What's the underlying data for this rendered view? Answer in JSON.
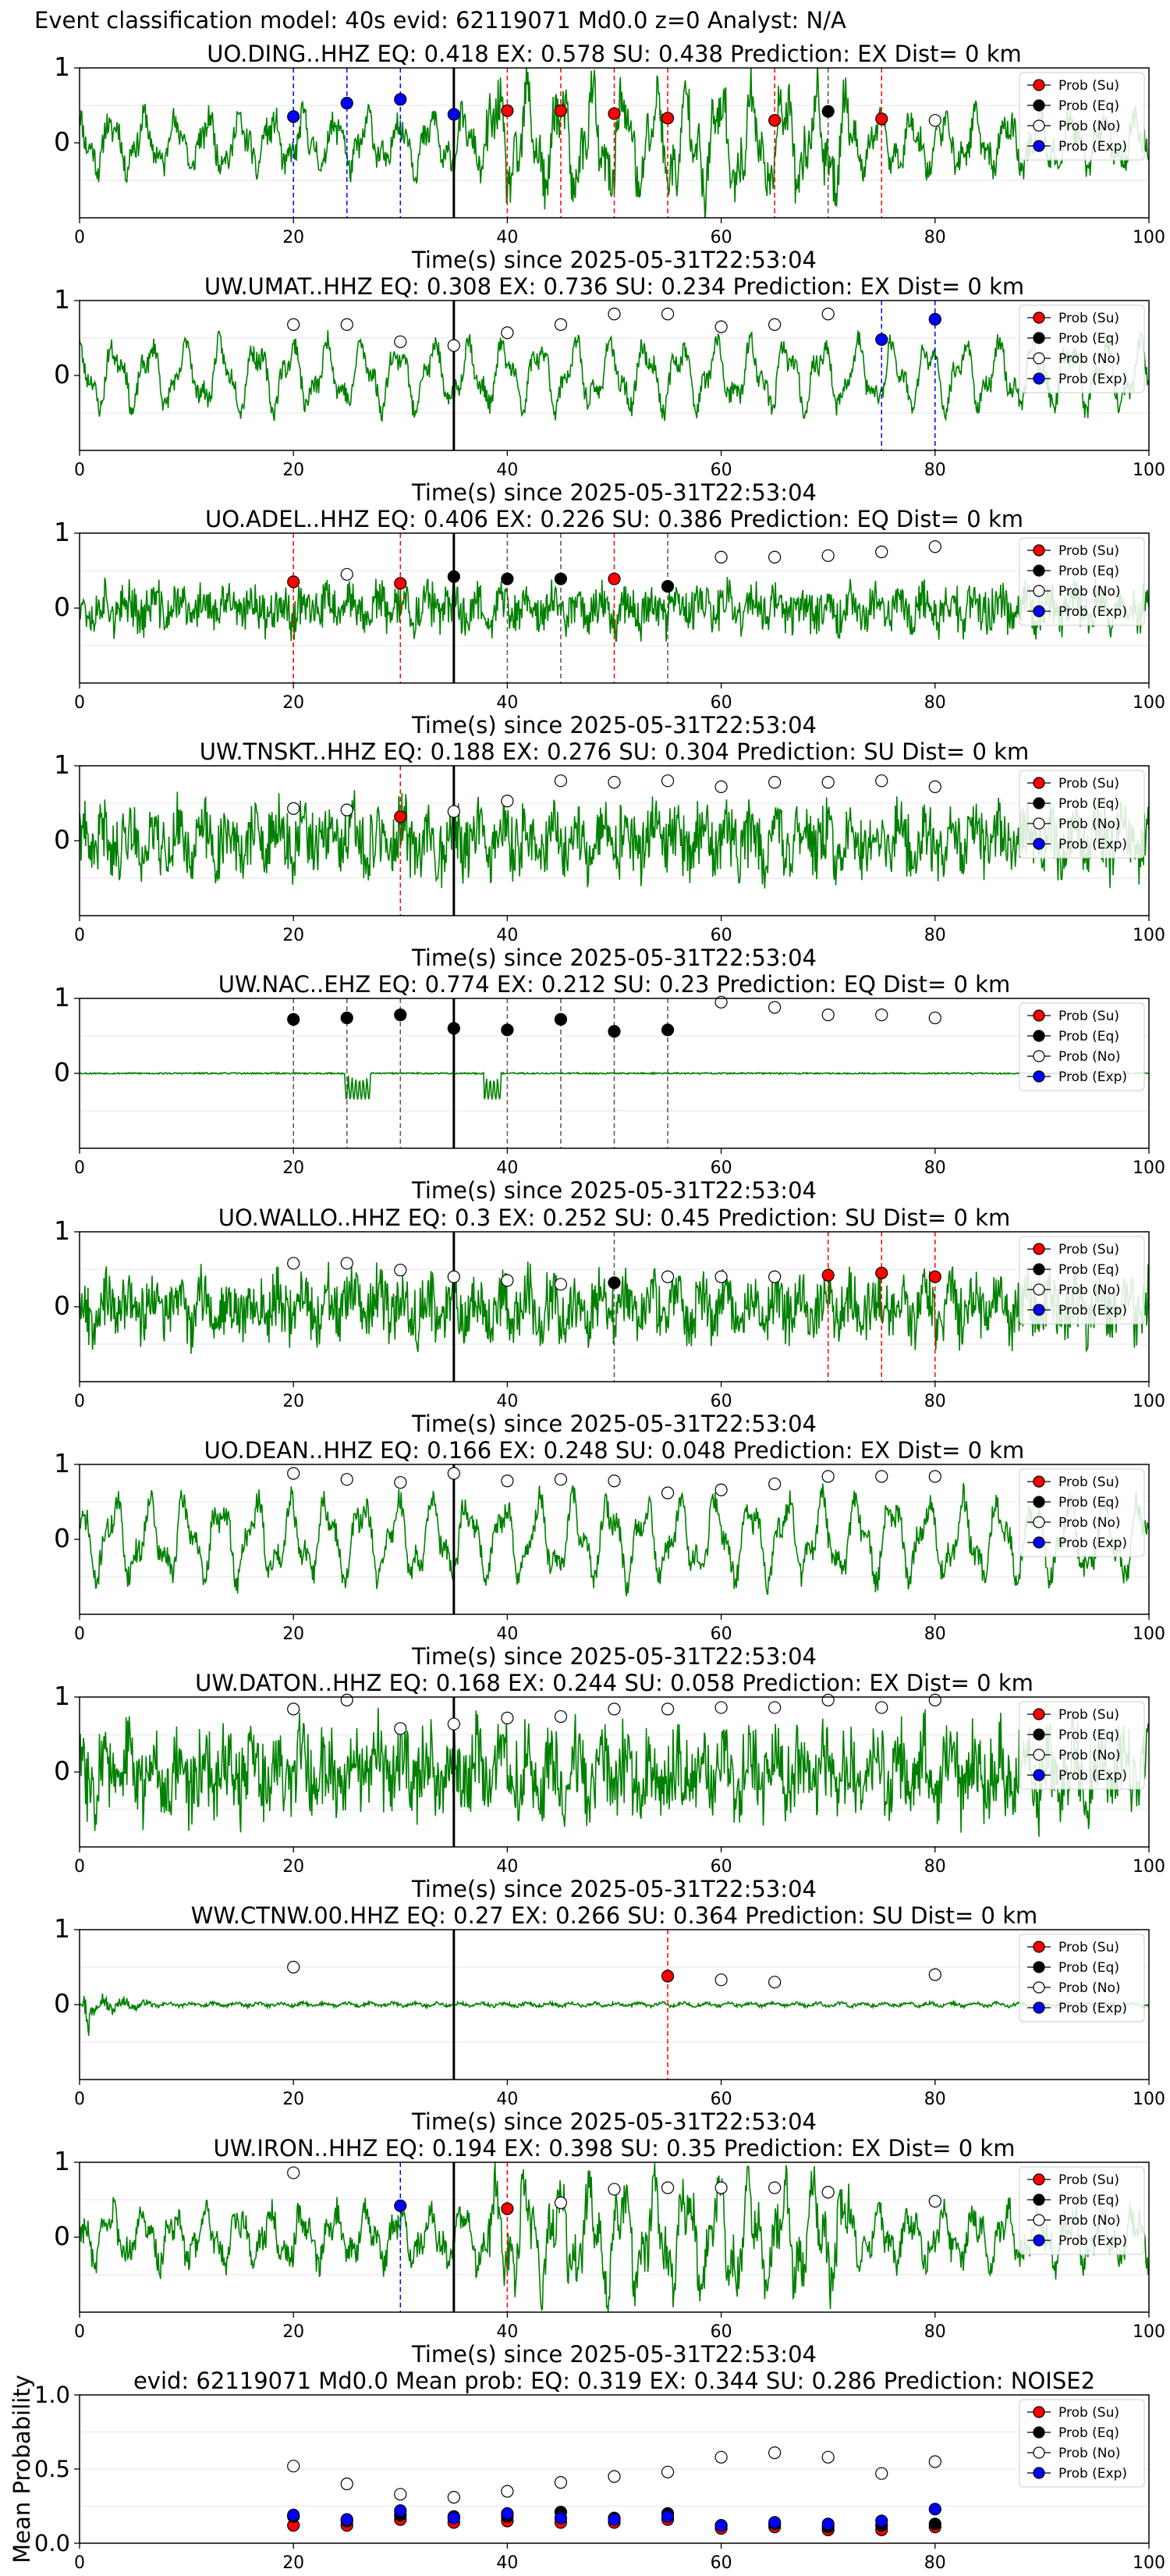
{
  "figure": {
    "suptitle": "Event classification model: 40s evid: 62119071 Md0.0 z=0 Analyst: N/A"
  },
  "legend": {
    "entries": [
      {
        "label": "Prob (Su)",
        "color": "#ff0000"
      },
      {
        "label": "Prob (Eq)",
        "color": "#000000"
      },
      {
        "label": "Prob (No)",
        "color": "#ffffff"
      },
      {
        "label": "Prob (Exp)",
        "color": "#0000ff"
      }
    ]
  },
  "colors": {
    "waveform": "#008000",
    "Su": "#ff0000",
    "Eq": "#000000",
    "No": "#ffffff",
    "Exp": "#0000ff",
    "event_line": "#000000"
  },
  "chart_data": [
    {
      "type": "line",
      "title": "UO.DING..HHZ   EQ: 0.418  EX: 0.578  SU: 0.438   Prediction: EX    Dist= 0 km",
      "xlabel": "Time(s) since 2025-05-31T22:53:04",
      "xlim": [
        0,
        100
      ],
      "ylim": [
        -1,
        1
      ],
      "xticks": [
        0,
        20,
        40,
        60,
        80,
        100
      ],
      "yticks": [
        0,
        1
      ],
      "event_time": 35,
      "waveform": {
        "amplitude": 0.45,
        "character": "mixed",
        "seed": 11
      },
      "points": [
        [
          20,
          0.35,
          "Exp"
        ],
        [
          25,
          0.53,
          "Exp"
        ],
        [
          30,
          0.58,
          "Exp"
        ],
        [
          35,
          0.38,
          "Exp"
        ],
        [
          40,
          0.43,
          "Su"
        ],
        [
          45,
          0.43,
          "Su"
        ],
        [
          50,
          0.39,
          "Su"
        ],
        [
          55,
          0.33,
          "Su"
        ],
        [
          65,
          0.3,
          "Su"
        ],
        [
          70,
          0.42,
          "Eq"
        ],
        [
          75,
          0.32,
          "Su"
        ],
        [
          80,
          0.3,
          "No"
        ]
      ]
    },
    {
      "type": "line",
      "title": "UW.UMAT..HHZ   EQ: 0.308  EX: 0.736  SU: 0.234   Prediction: EX    Dist= 0 km",
      "xlabel": "Time(s) since 2025-05-31T22:53:04",
      "xlim": [
        0,
        100
      ],
      "ylim": [
        -1,
        1
      ],
      "xticks": [
        0,
        20,
        40,
        60,
        80,
        100
      ],
      "yticks": [
        0,
        1
      ],
      "event_time": 35,
      "waveform": {
        "amplitude": 0.45,
        "character": "oscillating",
        "seed": 23
      },
      "points": [
        [
          20,
          0.68,
          "No"
        ],
        [
          25,
          0.68,
          "No"
        ],
        [
          30,
          0.45,
          "No"
        ],
        [
          35,
          0.4,
          "No"
        ],
        [
          40,
          0.57,
          "No"
        ],
        [
          45,
          0.68,
          "No"
        ],
        [
          50,
          0.82,
          "No"
        ],
        [
          55,
          0.82,
          "No"
        ],
        [
          60,
          0.65,
          "No"
        ],
        [
          65,
          0.68,
          "No"
        ],
        [
          70,
          0.82,
          "No"
        ],
        [
          75,
          0.48,
          "Exp"
        ],
        [
          80,
          0.75,
          "Exp"
        ]
      ]
    },
    {
      "type": "line",
      "title": "UO.ADEL..HHZ   EQ: 0.406  EX: 0.226  SU: 0.386   Prediction: EQ    Dist= 0 km",
      "xlabel": "Time(s) since 2025-05-31T22:53:04",
      "xlim": [
        0,
        100
      ],
      "ylim": [
        -1,
        1
      ],
      "xticks": [
        0,
        20,
        40,
        60,
        80,
        100
      ],
      "yticks": [
        0,
        1
      ],
      "event_time": 35,
      "waveform": {
        "amplitude": 0.38,
        "character": "noisy",
        "seed": 37
      },
      "points": [
        [
          20,
          0.35,
          "Su"
        ],
        [
          25,
          0.45,
          "No"
        ],
        [
          30,
          0.33,
          "Su"
        ],
        [
          35,
          0.42,
          "Eq"
        ],
        [
          40,
          0.39,
          "Eq"
        ],
        [
          45,
          0.39,
          "Eq"
        ],
        [
          50,
          0.39,
          "Su"
        ],
        [
          55,
          0.29,
          "Eq"
        ],
        [
          60,
          0.68,
          "No"
        ],
        [
          65,
          0.68,
          "No"
        ],
        [
          70,
          0.7,
          "No"
        ],
        [
          75,
          0.75,
          "No"
        ],
        [
          80,
          0.82,
          "No"
        ]
      ]
    },
    {
      "type": "line",
      "title": "UW.TNSKT..HHZ   EQ: 0.188  EX: 0.276  SU: 0.304   Prediction: SU    Dist= 0 km",
      "xlabel": "Time(s) since 2025-05-31T22:53:04",
      "xlim": [
        0,
        100
      ],
      "ylim": [
        -1,
        1
      ],
      "xticks": [
        0,
        20,
        40,
        60,
        80,
        100
      ],
      "yticks": [
        0,
        1
      ],
      "event_time": 35,
      "waveform": {
        "amplitude": 0.55,
        "character": "noisy",
        "seed": 41
      },
      "points": [
        [
          20,
          0.43,
          "No"
        ],
        [
          25,
          0.41,
          "No"
        ],
        [
          30,
          0.32,
          "Su"
        ],
        [
          35,
          0.39,
          "No"
        ],
        [
          40,
          0.53,
          "No"
        ],
        [
          45,
          0.8,
          "No"
        ],
        [
          50,
          0.78,
          "No"
        ],
        [
          55,
          0.8,
          "No"
        ],
        [
          60,
          0.72,
          "No"
        ],
        [
          65,
          0.78,
          "No"
        ],
        [
          70,
          0.78,
          "No"
        ],
        [
          75,
          0.8,
          "No"
        ],
        [
          80,
          0.72,
          "No"
        ]
      ]
    },
    {
      "type": "line",
      "title": "UW.NAC..EHZ   EQ: 0.774  EX: 0.212  SU: 0.23   Prediction: EQ    Dist= 0 km",
      "xlabel": "Time(s) since 2025-05-31T22:53:04",
      "xlim": [
        0,
        100
      ],
      "ylim": [
        -1,
        1
      ],
      "xticks": [
        0,
        20,
        40,
        60,
        80,
        100
      ],
      "yticks": [
        0,
        1
      ],
      "event_time": 35,
      "waveform": {
        "amplitude": 0.02,
        "character": "flat",
        "seed": 53
      },
      "points": [
        [
          20,
          0.72,
          "Eq"
        ],
        [
          25,
          0.74,
          "Eq"
        ],
        [
          30,
          0.78,
          "Eq"
        ],
        [
          35,
          0.6,
          "Eq"
        ],
        [
          40,
          0.58,
          "Eq"
        ],
        [
          45,
          0.72,
          "Eq"
        ],
        [
          50,
          0.56,
          "Eq"
        ],
        [
          55,
          0.58,
          "Eq"
        ],
        [
          60,
          0.95,
          "No"
        ],
        [
          65,
          0.88,
          "No"
        ],
        [
          70,
          0.78,
          "No"
        ],
        [
          75,
          0.78,
          "No"
        ],
        [
          80,
          0.74,
          "No"
        ]
      ]
    },
    {
      "type": "line",
      "title": "UO.WALLO..HHZ   EQ: 0.3  EX: 0.252  SU: 0.45   Prediction: SU    Dist= 0 km",
      "xlabel": "Time(s) since 2025-05-31T22:53:04",
      "xlim": [
        0,
        100
      ],
      "ylim": [
        -1,
        1
      ],
      "xticks": [
        0,
        20,
        40,
        60,
        80,
        100
      ],
      "yticks": [
        0,
        1
      ],
      "event_time": 35,
      "waveform": {
        "amplitude": 0.5,
        "character": "noisy",
        "seed": 67
      },
      "points": [
        [
          20,
          0.58,
          "No"
        ],
        [
          25,
          0.58,
          "No"
        ],
        [
          30,
          0.49,
          "No"
        ],
        [
          35,
          0.4,
          "No"
        ],
        [
          40,
          0.35,
          "No"
        ],
        [
          45,
          0.3,
          "No"
        ],
        [
          50,
          0.32,
          "Eq"
        ],
        [
          55,
          0.4,
          "No"
        ],
        [
          60,
          0.4,
          "No"
        ],
        [
          65,
          0.4,
          "No"
        ],
        [
          70,
          0.42,
          "Su"
        ],
        [
          75,
          0.45,
          "Su"
        ],
        [
          80,
          0.4,
          "Su"
        ]
      ]
    },
    {
      "type": "line",
      "title": "UO.DEAN..HHZ   EQ: 0.166  EX: 0.248  SU: 0.048   Prediction: EX    Dist= 0 km",
      "xlabel": "Time(s) since 2025-05-31T22:53:04",
      "xlim": [
        0,
        100
      ],
      "ylim": [
        -1,
        1
      ],
      "xticks": [
        0,
        20,
        40,
        60,
        80,
        100
      ],
      "yticks": [
        0,
        1
      ],
      "event_time": 35,
      "waveform": {
        "amplitude": 0.55,
        "character": "oscillating",
        "seed": 71
      },
      "points": [
        [
          20,
          0.88,
          "No"
        ],
        [
          25,
          0.8,
          "No"
        ],
        [
          30,
          0.76,
          "No"
        ],
        [
          35,
          0.88,
          "No"
        ],
        [
          40,
          0.78,
          "No"
        ],
        [
          45,
          0.8,
          "No"
        ],
        [
          50,
          0.78,
          "No"
        ],
        [
          55,
          0.62,
          "No"
        ],
        [
          60,
          0.66,
          "No"
        ],
        [
          65,
          0.74,
          "No"
        ],
        [
          70,
          0.84,
          "No"
        ],
        [
          75,
          0.84,
          "No"
        ],
        [
          80,
          0.84,
          "No"
        ]
      ]
    },
    {
      "type": "line",
      "title": "UW.DATON..HHZ   EQ: 0.168  EX: 0.244  SU: 0.058   Prediction: EX    Dist= 0 km",
      "xlabel": "Time(s) since 2025-05-31T22:53:04",
      "xlim": [
        0,
        100
      ],
      "ylim": [
        -1,
        1
      ],
      "xticks": [
        0,
        20,
        40,
        60,
        80,
        100
      ],
      "yticks": [
        0,
        1
      ],
      "event_time": 35,
      "waveform": {
        "amplitude": 0.7,
        "character": "noisy",
        "seed": 83
      },
      "points": [
        [
          20,
          0.84,
          "No"
        ],
        [
          25,
          0.96,
          "No"
        ],
        [
          30,
          0.58,
          "No"
        ],
        [
          35,
          0.64,
          "No"
        ],
        [
          40,
          0.72,
          "No"
        ],
        [
          45,
          0.74,
          "No"
        ],
        [
          50,
          0.84,
          "No"
        ],
        [
          55,
          0.84,
          "No"
        ],
        [
          60,
          0.86,
          "No"
        ],
        [
          65,
          0.86,
          "No"
        ],
        [
          70,
          0.96,
          "No"
        ],
        [
          75,
          0.86,
          "No"
        ],
        [
          80,
          0.96,
          "No"
        ]
      ]
    },
    {
      "type": "line",
      "title": "WW.CTNW.00.HHZ   EQ: 0.27  EX: 0.266  SU: 0.364   Prediction: SU    Dist= 0 km",
      "xlabel": "Time(s) since 2025-05-31T22:53:04",
      "xlim": [
        0,
        100
      ],
      "ylim": [
        -1,
        1
      ],
      "xticks": [
        0,
        20,
        40,
        60,
        80,
        100
      ],
      "yticks": [
        0,
        1
      ],
      "event_time": 35,
      "waveform": {
        "amplitude": 0.12,
        "character": "decaying",
        "seed": 97
      },
      "points": [
        [
          20,
          0.5,
          "No"
        ],
        [
          55,
          0.38,
          "Su"
        ],
        [
          60,
          0.33,
          "No"
        ],
        [
          65,
          0.3,
          "No"
        ],
        [
          80,
          0.4,
          "No"
        ]
      ]
    },
    {
      "type": "line",
      "title": "UW.IRON..HHZ   EQ: 0.194  EX: 0.398  SU: 0.35   Prediction: EX    Dist= 0 km",
      "xlabel": "Time(s) since 2025-05-31T22:53:04",
      "xlim": [
        0,
        100
      ],
      "ylim": [
        -1,
        1
      ],
      "xticks": [
        0,
        20,
        40,
        60,
        80,
        100
      ],
      "yticks": [
        0,
        1
      ],
      "event_time": 35,
      "waveform": {
        "amplitude": 0.45,
        "character": "mixed",
        "seed": 103
      },
      "points": [
        [
          20,
          0.86,
          "No"
        ],
        [
          30,
          0.42,
          "Exp"
        ],
        [
          40,
          0.38,
          "Su"
        ],
        [
          45,
          0.46,
          "No"
        ],
        [
          50,
          0.64,
          "No"
        ],
        [
          55,
          0.66,
          "No"
        ],
        [
          60,
          0.66,
          "No"
        ],
        [
          65,
          0.66,
          "No"
        ],
        [
          70,
          0.6,
          "No"
        ],
        [
          80,
          0.48,
          "No"
        ]
      ]
    },
    {
      "type": "scatter",
      "title": "evid: 62119071  Md0.0   Mean prob:   EQ: 0.319  EX: 0.344  SU: 0.286   Prediction: NOISE2",
      "xlabel": "",
      "ylabel": "Mean Probability",
      "xlim": [
        0,
        100
      ],
      "ylim": [
        0,
        1
      ],
      "xticks": [
        0,
        20,
        40,
        60,
        80,
        100
      ],
      "yticks": [
        0.0,
        0.5,
        1.0
      ],
      "x": [
        20,
        25,
        30,
        35,
        40,
        45,
        50,
        55,
        60,
        65,
        70,
        75,
        80
      ],
      "series": [
        {
          "name": "Prob (Su)",
          "key": "Su",
          "values": [
            0.12,
            0.12,
            0.16,
            0.14,
            0.15,
            0.14,
            0.14,
            0.16,
            0.1,
            0.11,
            0.09,
            0.09,
            0.11
          ]
        },
        {
          "name": "Prob (Eq)",
          "key": "Eq",
          "values": [
            0.18,
            0.15,
            0.19,
            0.18,
            0.18,
            0.21,
            0.17,
            0.2,
            0.12,
            0.13,
            0.11,
            0.12,
            0.13
          ]
        },
        {
          "name": "Prob (No)",
          "key": "No",
          "values": [
            0.52,
            0.4,
            0.33,
            0.31,
            0.35,
            0.41,
            0.45,
            0.48,
            0.58,
            0.61,
            0.58,
            0.47,
            0.55
          ]
        },
        {
          "name": "Prob (Exp)",
          "key": "Exp",
          "values": [
            0.19,
            0.16,
            0.22,
            0.17,
            0.2,
            0.17,
            0.16,
            0.18,
            0.12,
            0.14,
            0.13,
            0.15,
            0.23
          ]
        }
      ]
    }
  ]
}
